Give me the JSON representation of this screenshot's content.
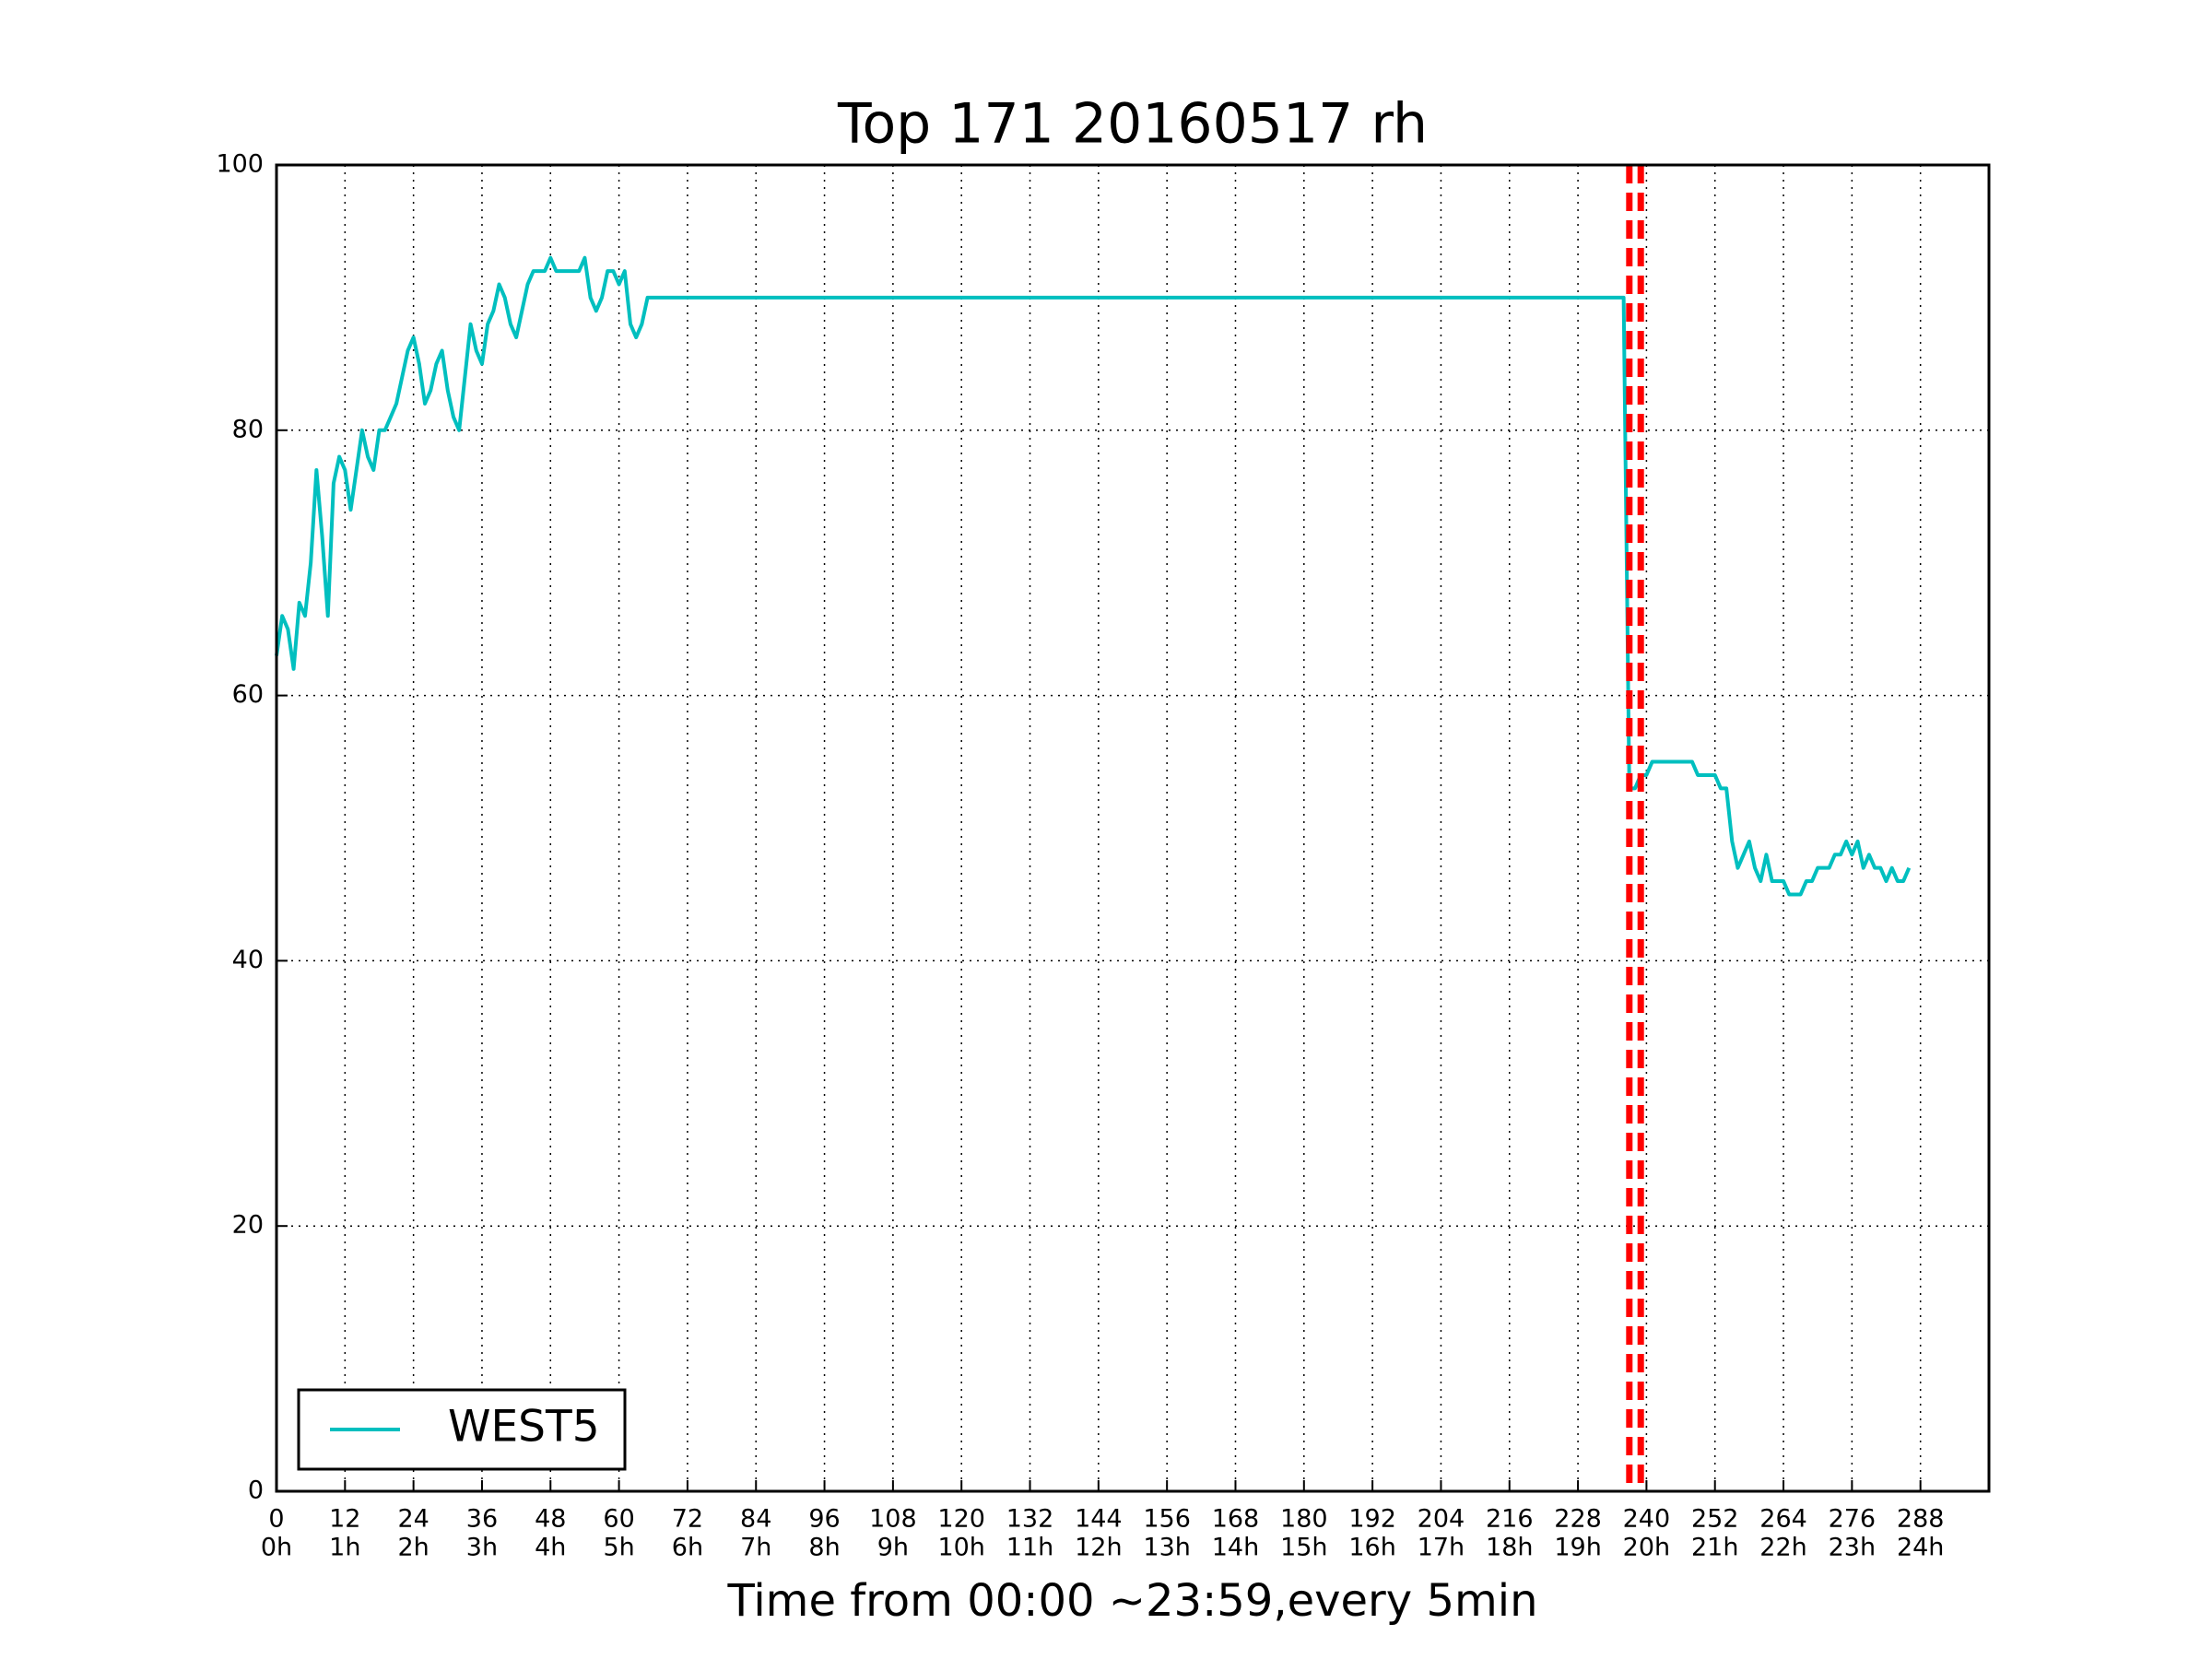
{
  "chart_data": {
    "type": "line",
    "title": "Top 171 20160517 rh",
    "xlabel": "Time from 00:00 ~23:59,every 5min",
    "xlim": [
      0,
      300
    ],
    "ylim": [
      0,
      100
    ],
    "xticks": [
      0,
      12,
      24,
      36,
      48,
      60,
      72,
      84,
      96,
      108,
      120,
      132,
      144,
      156,
      168,
      180,
      192,
      204,
      216,
      228,
      240,
      252,
      264,
      276,
      288
    ],
    "xtick_hours": [
      "0h",
      "1h",
      "2h",
      "3h",
      "4h",
      "5h",
      "6h",
      "7h",
      "8h",
      "9h",
      "10h",
      "11h",
      "12h",
      "13h",
      "14h",
      "15h",
      "16h",
      "17h",
      "18h",
      "19h",
      "20h",
      "21h",
      "22h",
      "23h",
      "24h"
    ],
    "yticks": [
      0,
      20,
      40,
      60,
      80,
      100
    ],
    "grid": true,
    "legend": "lower left",
    "vlines": [
      237,
      239
    ],
    "vline_color": "#ff0000",
    "x": [
      0,
      1,
      2,
      3,
      4,
      5,
      6,
      7,
      8,
      9,
      10,
      11,
      12,
      13,
      14,
      15,
      16,
      17,
      18,
      19,
      20,
      21,
      22,
      23,
      24,
      25,
      26,
      27,
      28,
      29,
      30,
      31,
      32,
      33,
      34,
      35,
      36,
      37,
      38,
      39,
      40,
      41,
      42,
      43,
      44,
      45,
      46,
      47,
      48,
      49,
      50,
      51,
      52,
      53,
      54,
      55,
      56,
      57,
      58,
      59,
      60,
      61,
      62,
      63,
      64,
      65,
      66,
      67,
      68,
      69,
      70,
      71,
      72,
      73,
      74,
      75,
      76,
      77,
      78,
      79,
      80,
      81,
      82,
      83,
      84,
      85,
      86,
      87,
      88,
      89,
      90,
      91,
      92,
      93,
      94,
      95,
      96,
      97,
      98,
      99,
      100,
      101,
      102,
      103,
      104,
      105,
      106,
      107,
      108,
      109,
      110,
      111,
      112,
      113,
      114,
      115,
      116,
      117,
      118,
      119,
      120,
      121,
      122,
      123,
      124,
      125,
      126,
      127,
      128,
      129,
      130,
      131,
      132,
      133,
      134,
      135,
      136,
      137,
      138,
      139,
      140,
      141,
      142,
      143,
      144,
      145,
      146,
      147,
      148,
      149,
      150,
      151,
      152,
      153,
      154,
      155,
      156,
      157,
      158,
      159,
      160,
      161,
      162,
      163,
      164,
      165,
      166,
      167,
      168,
      169,
      170,
      171,
      172,
      173,
      174,
      175,
      176,
      177,
      178,
      179,
      180,
      181,
      182,
      183,
      184,
      185,
      186,
      187,
      188,
      189,
      190,
      191,
      192,
      193,
      194,
      195,
      196,
      197,
      198,
      199,
      200,
      201,
      202,
      203,
      204,
      205,
      206,
      207,
      208,
      209,
      210,
      211,
      212,
      213,
      214,
      215,
      216,
      217,
      218,
      219,
      220,
      221,
      222,
      223,
      224,
      225,
      226,
      227,
      228,
      229,
      230,
      231,
      232,
      233,
      234,
      235,
      236,
      237,
      238,
      239,
      240,
      241,
      242,
      243,
      244,
      245,
      246,
      247,
      248,
      249,
      250,
      251,
      252,
      253,
      254,
      255,
      256,
      257,
      258,
      259,
      260,
      261,
      262,
      263,
      264,
      265,
      266,
      267,
      268,
      269,
      270,
      271,
      272,
      273,
      274,
      275,
      276,
      277,
      278,
      279,
      280,
      281,
      282,
      283,
      284,
      285,
      286
    ],
    "series": [
      {
        "name": "WEST5",
        "color": "#00bfbf",
        "values": [
          63,
          66,
          65,
          62,
          67,
          66,
          70,
          77,
          72,
          66,
          76,
          78,
          77,
          74,
          77,
          80,
          78,
          77,
          80,
          80,
          81,
          82,
          84,
          86,
          87,
          85,
          82,
          83,
          85,
          86,
          83,
          81,
          80,
          84,
          88,
          86,
          85,
          88,
          89,
          91,
          90,
          88,
          87,
          89,
          91,
          92,
          92,
          92,
          93,
          92,
          92,
          92,
          92,
          92,
          93,
          90,
          89,
          90,
          92,
          92,
          91,
          92,
          88,
          87,
          88,
          90,
          90,
          90,
          90,
          90,
          90,
          90,
          90,
          90,
          90,
          90,
          90,
          90,
          90,
          90,
          90,
          90,
          90,
          90,
          90,
          90,
          90,
          90,
          90,
          90,
          90,
          90,
          90,
          90,
          90,
          90,
          90,
          90,
          90,
          90,
          90,
          90,
          90,
          90,
          90,
          90,
          90,
          90,
          90,
          90,
          90,
          90,
          90,
          90,
          90,
          90,
          90,
          90,
          90,
          90,
          90,
          90,
          90,
          90,
          90,
          90,
          90,
          90,
          90,
          90,
          90,
          90,
          90,
          90,
          90,
          90,
          90,
          90,
          90,
          90,
          90,
          90,
          90,
          90,
          90,
          90,
          90,
          90,
          90,
          90,
          90,
          90,
          90,
          90,
          90,
          90,
          90,
          90,
          90,
          90,
          90,
          90,
          90,
          90,
          90,
          90,
          90,
          90,
          90,
          90,
          90,
          90,
          90,
          90,
          90,
          90,
          90,
          90,
          90,
          90,
          90,
          90,
          90,
          90,
          90,
          90,
          90,
          90,
          90,
          90,
          90,
          90,
          90,
          90,
          90,
          90,
          90,
          90,
          90,
          90,
          90,
          90,
          90,
          90,
          90,
          90,
          90,
          90,
          90,
          90,
          90,
          90,
          90,
          90,
          90,
          90,
          90,
          90,
          90,
          90,
          90,
          90,
          90,
          90,
          90,
          90,
          90,
          90,
          90,
          90,
          90,
          90,
          90,
          90,
          90,
          90,
          90,
          53,
          53,
          54,
          54,
          55,
          55,
          55,
          55,
          55,
          55,
          55,
          55,
          54,
          54,
          54,
          54,
          53,
          53,
          49,
          47,
          48,
          49,
          47,
          46,
          48,
          46,
          46,
          46,
          45,
          45,
          45,
          46,
          46,
          47,
          47,
          47,
          48,
          48,
          49,
          48,
          49,
          47,
          48,
          47,
          47,
          46,
          47,
          46,
          46,
          47
        ]
      }
    ]
  }
}
